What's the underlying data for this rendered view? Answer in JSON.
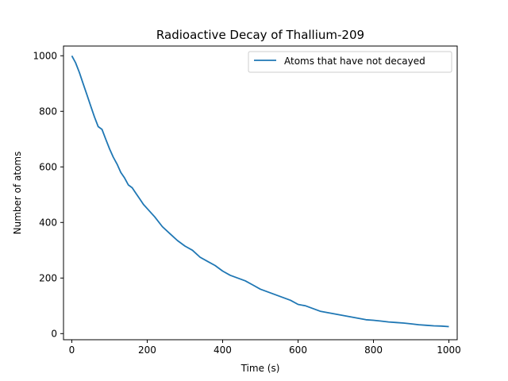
{
  "chart_data": {
    "type": "line",
    "title": "Radioactive Decay of Thallium-209",
    "xlabel": "Time (s)",
    "ylabel": "Number of atoms",
    "xlim": [
      -22,
      1022
    ],
    "ylim": [
      -22,
      1035
    ],
    "xticks": [
      0,
      200,
      400,
      600,
      800,
      1000
    ],
    "yticks": [
      0,
      200,
      400,
      600,
      800,
      1000
    ],
    "grid": false,
    "legend": "top-right",
    "series": [
      {
        "name": "Atoms that have not decayed",
        "color": "#1f77b4",
        "x": [
          0,
          10,
          20,
          30,
          40,
          50,
          60,
          70,
          80,
          90,
          100,
          110,
          120,
          130,
          140,
          150,
          160,
          170,
          180,
          190,
          200,
          220,
          240,
          260,
          280,
          300,
          320,
          340,
          360,
          380,
          400,
          420,
          440,
          460,
          480,
          500,
          520,
          540,
          560,
          580,
          600,
          620,
          640,
          660,
          680,
          700,
          720,
          740,
          760,
          780,
          800,
          820,
          840,
          860,
          880,
          900,
          920,
          940,
          960,
          980,
          1000
        ],
        "y": [
          1000,
          975,
          940,
          900,
          860,
          820,
          780,
          745,
          735,
          700,
          665,
          635,
          610,
          580,
          560,
          535,
          525,
          505,
          485,
          465,
          450,
          420,
          385,
          360,
          335,
          315,
          300,
          275,
          260,
          245,
          225,
          210,
          200,
          190,
          175,
          160,
          150,
          140,
          130,
          120,
          105,
          100,
          90,
          80,
          75,
          70,
          65,
          60,
          55,
          50,
          48,
          45,
          42,
          40,
          38,
          35,
          32,
          30,
          28,
          27,
          25
        ]
      }
    ]
  }
}
